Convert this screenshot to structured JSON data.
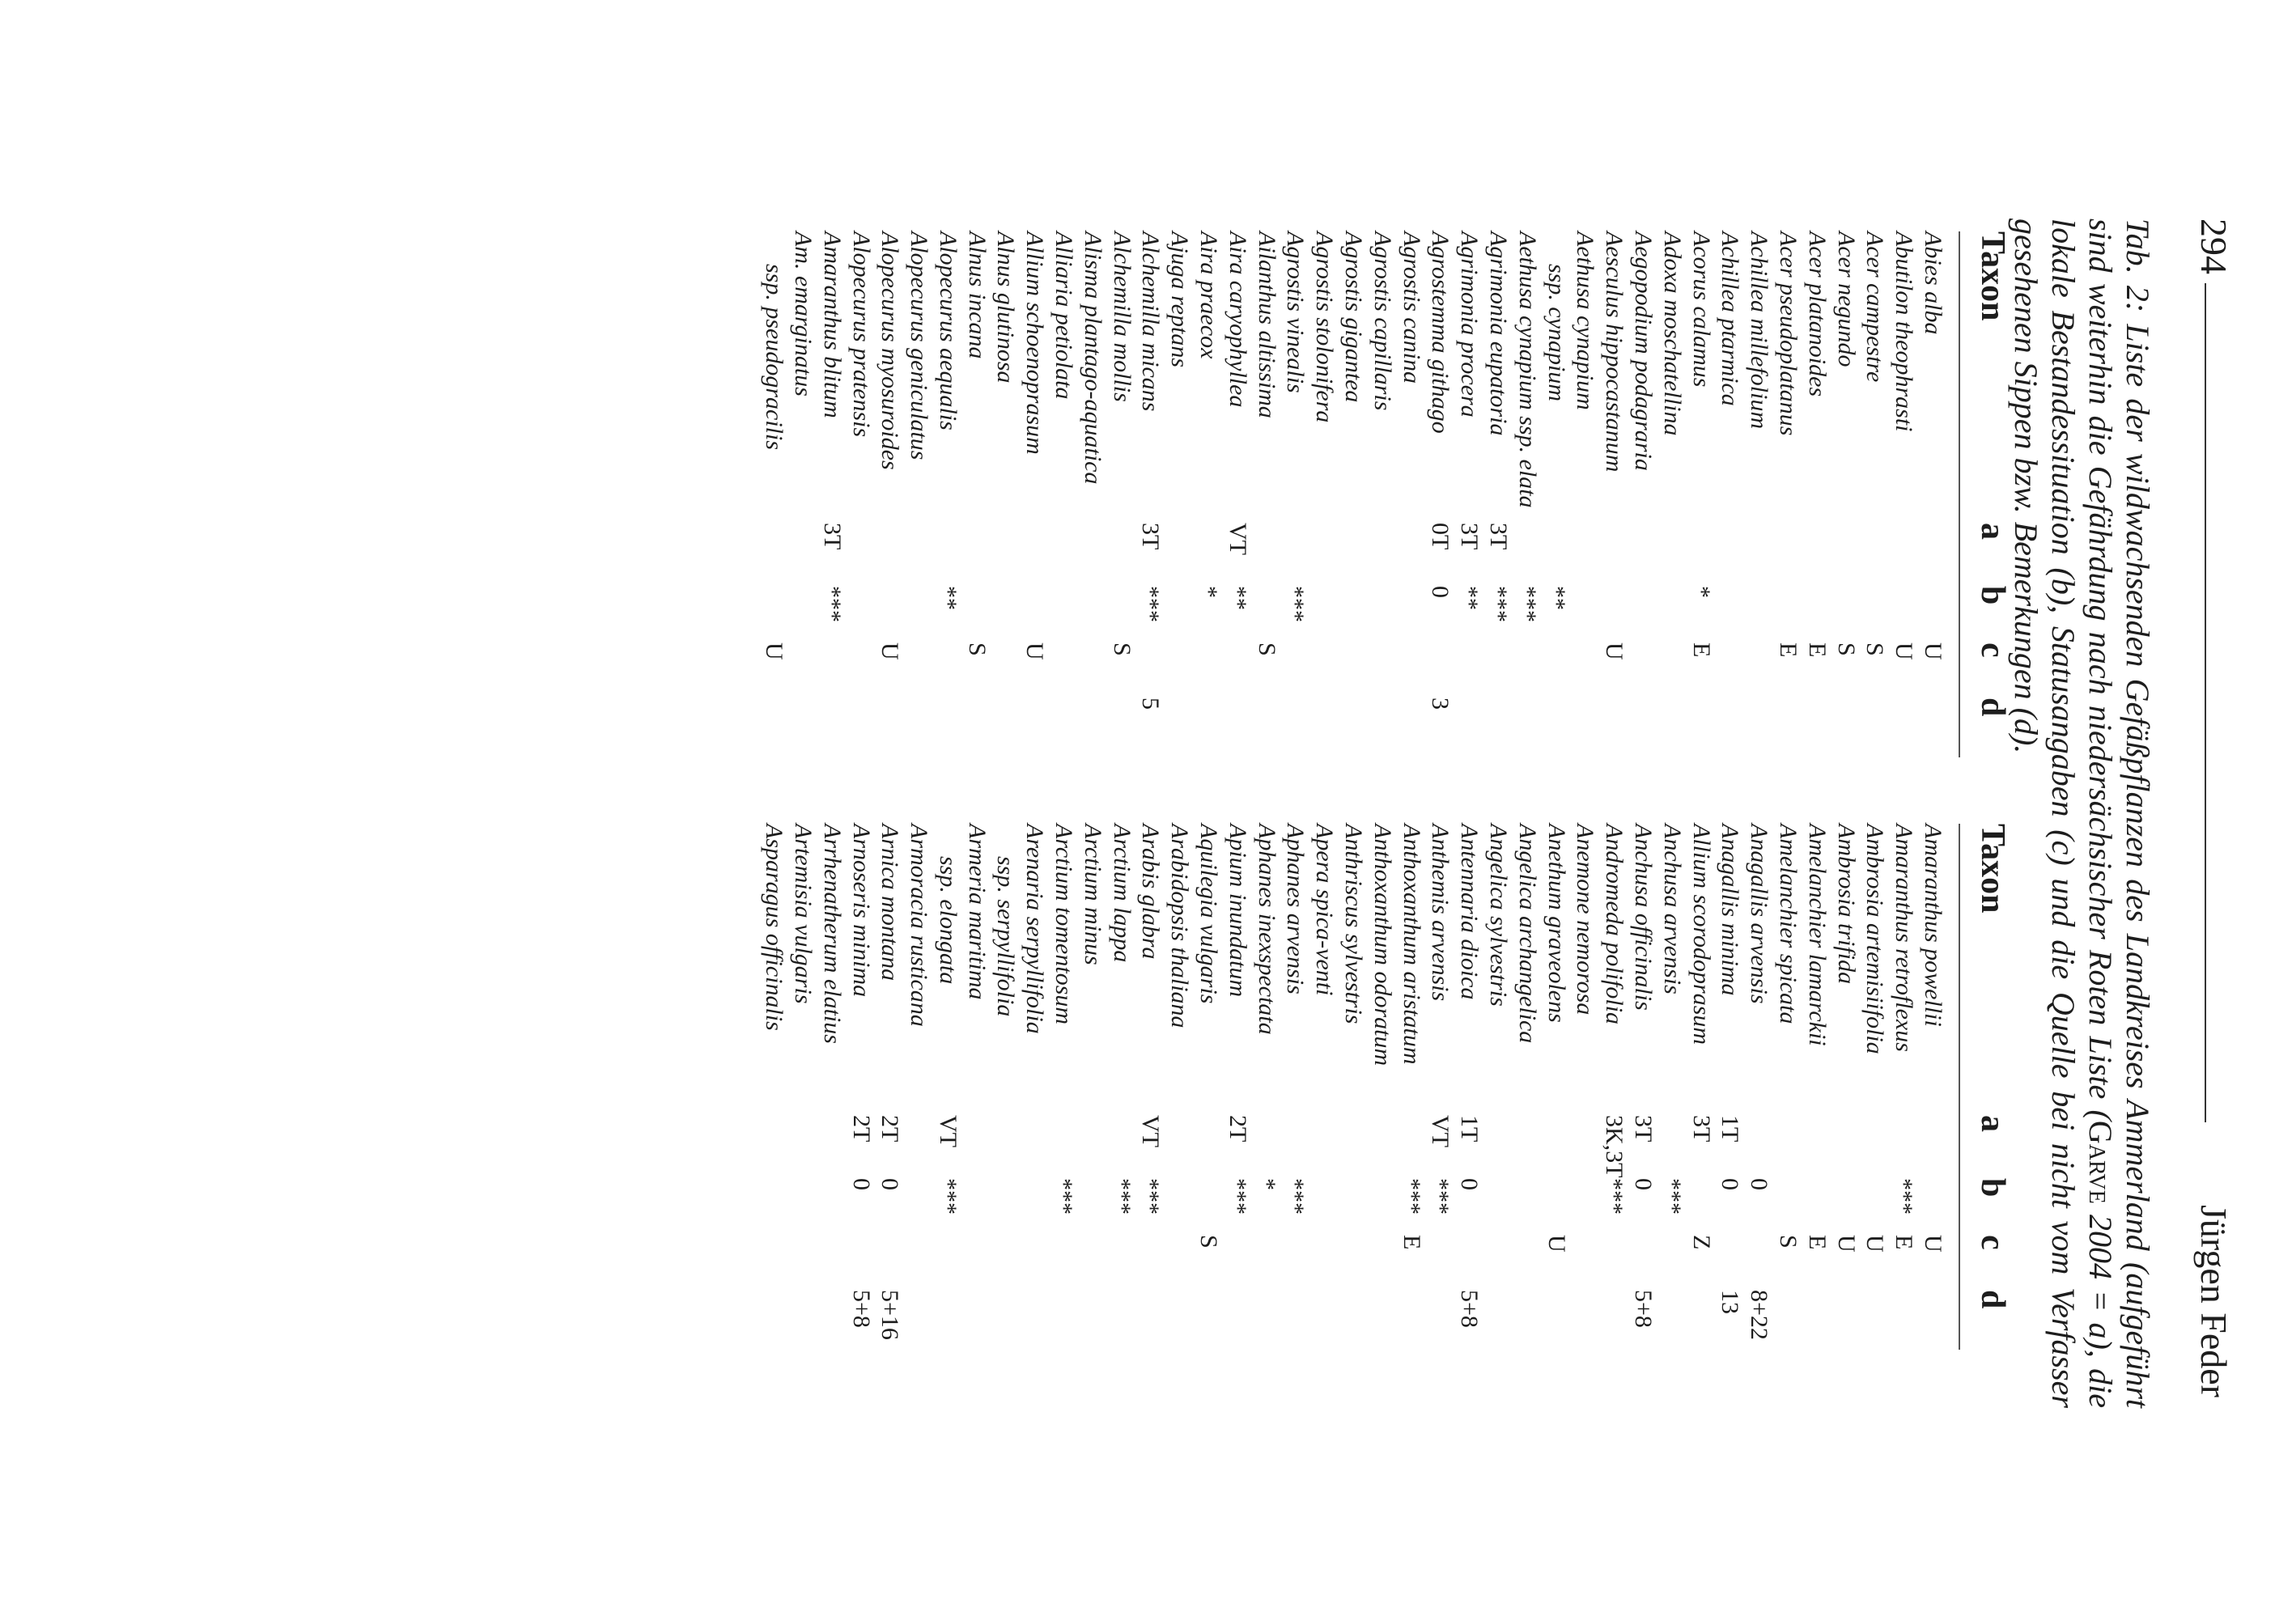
{
  "header": {
    "page_number": "294",
    "author": "Jürgen Feder"
  },
  "caption": {
    "part1": "Tab. 2: Liste der wildwachsenden Gefäßpflanzen des Landkreises Ammerland (aufgeführt sind weiterhin die Gefährdung nach niedersächsischer Roten Liste (",
    "cite": "Garve",
    "part2": " 2004 = a), die lokale Bestandessituation (b), Statusangaben (c) und die Quelle bei nicht vom Verfasser gesehenen Sippen bzw. Bemerkungen (d)."
  },
  "columns": {
    "taxon": "Taxon",
    "a": "a",
    "b": "b",
    "c": "c",
    "d": "d"
  },
  "left_rows": [
    {
      "taxon": "Abies alba",
      "a": "",
      "b": "",
      "c": "U",
      "d": ""
    },
    {
      "taxon": "Abutilon theophrasti",
      "a": "",
      "b": "",
      "c": "U",
      "d": ""
    },
    {
      "taxon": "Acer campestre",
      "a": "",
      "b": "",
      "c": "S",
      "d": ""
    },
    {
      "taxon": "Acer negundo",
      "a": "",
      "b": "",
      "c": "S",
      "d": ""
    },
    {
      "taxon": "Acer platanoides",
      "a": "",
      "b": "",
      "c": "E",
      "d": ""
    },
    {
      "taxon": "Acer pseudoplatanus",
      "a": "",
      "b": "",
      "c": "E",
      "d": ""
    },
    {
      "taxon": "Achillea millefolium",
      "a": "",
      "b": "",
      "c": "",
      "d": ""
    },
    {
      "taxon": "Achillea ptarmica",
      "a": "",
      "b": "",
      "c": "",
      "d": ""
    },
    {
      "taxon": "Acorus calamus",
      "a": "",
      "b": "*",
      "c": "E",
      "d": ""
    },
    {
      "taxon": "Adoxa moschatellina",
      "a": "",
      "b": "",
      "c": "",
      "d": ""
    },
    {
      "taxon": "Aegopodium podagraria",
      "a": "",
      "b": "",
      "c": "",
      "d": ""
    },
    {
      "taxon": "Aesculus hippocastanum",
      "a": "",
      "b": "",
      "c": "U",
      "d": ""
    },
    {
      "taxon": "Aethusa cynapium",
      "a": "",
      "b": "",
      "c": "",
      "d": ""
    },
    {
      "taxon": "ssp. cynapium",
      "sub": true,
      "a": "",
      "b": "**",
      "c": "",
      "d": ""
    },
    {
      "taxon": "Aethusa cynapium ssp. elata",
      "a": "",
      "b": "***",
      "c": "",
      "d": ""
    },
    {
      "taxon": "Agrimonia eupatoria",
      "a": "3T",
      "b": "***",
      "c": "",
      "d": ""
    },
    {
      "taxon": "Agrimonia procera",
      "a": "3T",
      "b": "**",
      "c": "",
      "d": ""
    },
    {
      "taxon": "Agrostemma githago",
      "a": "0T",
      "b": "0",
      "c": "",
      "d": "3"
    },
    {
      "taxon": "Agrostis canina",
      "a": "",
      "b": "",
      "c": "",
      "d": ""
    },
    {
      "taxon": "Agrostis capillaris",
      "a": "",
      "b": "",
      "c": "",
      "d": ""
    },
    {
      "taxon": "Agrostis gigantea",
      "a": "",
      "b": "",
      "c": "",
      "d": ""
    },
    {
      "taxon": "Agrostis stolonifera",
      "a": "",
      "b": "",
      "c": "",
      "d": ""
    },
    {
      "taxon": "Agrostis vinealis",
      "a": "",
      "b": "***",
      "c": "",
      "d": ""
    },
    {
      "taxon": "Ailanthus altissima",
      "a": "",
      "b": "",
      "c": "S",
      "d": ""
    },
    {
      "taxon": "Aira caryophyllea",
      "a": "VT",
      "b": "**",
      "c": "",
      "d": ""
    },
    {
      "taxon": "Aira praecox",
      "a": "",
      "b": "*",
      "c": "",
      "d": ""
    },
    {
      "taxon": "Ajuga reptans",
      "a": "",
      "b": "",
      "c": "",
      "d": ""
    },
    {
      "taxon": "Alchemilla micans",
      "a": "3T",
      "b": "***",
      "c": "",
      "d": "5"
    },
    {
      "taxon": "Alchemilla mollis",
      "a": "",
      "b": "",
      "c": "S",
      "d": ""
    },
    {
      "taxon": "Alisma plantago-aquatica",
      "a": "",
      "b": "",
      "c": "",
      "d": ""
    },
    {
      "taxon": "Alliaria petiolata",
      "a": "",
      "b": "",
      "c": "",
      "d": ""
    },
    {
      "taxon": "Allium schoenoprasum",
      "a": "",
      "b": "",
      "c": "U",
      "d": ""
    },
    {
      "taxon": "Alnus glutinosa",
      "a": "",
      "b": "",
      "c": "",
      "d": ""
    },
    {
      "taxon": "Alnus incana",
      "a": "",
      "b": "",
      "c": "S",
      "d": ""
    },
    {
      "taxon": "Alopecurus aequalis",
      "a": "",
      "b": "**",
      "c": "",
      "d": ""
    },
    {
      "taxon": "Alopecurus geniculatus",
      "a": "",
      "b": "",
      "c": "",
      "d": ""
    },
    {
      "taxon": "Alopecurus myosuroides",
      "a": "",
      "b": "",
      "c": "U",
      "d": ""
    },
    {
      "taxon": "Alopecurus pratensis",
      "a": "",
      "b": "",
      "c": "",
      "d": ""
    },
    {
      "taxon": "Amaranthus blitum",
      "a": "3T",
      "b": "***",
      "c": "",
      "d": ""
    },
    {
      "taxon": "Am. emarginatus",
      "a": "",
      "b": "",
      "c": "",
      "d": ""
    },
    {
      "taxon": "ssp. pseudogracilis",
      "sub": true,
      "a": "",
      "b": "",
      "c": "U",
      "d": ""
    }
  ],
  "right_rows": [
    {
      "taxon": "Amaranthus powellii",
      "a": "",
      "b": "",
      "c": "U",
      "d": ""
    },
    {
      "taxon": "Amaranthus retroflexus",
      "a": "",
      "b": "***",
      "c": "E",
      "d": ""
    },
    {
      "taxon": "Ambrosia artemisiifolia",
      "a": "",
      "b": "",
      "c": "U",
      "d": ""
    },
    {
      "taxon": "Ambrosia trifida",
      "a": "",
      "b": "",
      "c": "U",
      "d": ""
    },
    {
      "taxon": "Amelanchier lamarckii",
      "a": "",
      "b": "",
      "c": "E",
      "d": ""
    },
    {
      "taxon": "Amelanchier spicata",
      "a": "",
      "b": "",
      "c": "S",
      "d": ""
    },
    {
      "taxon": "Anagallis arvensis",
      "a": "",
      "b": "0",
      "c": "",
      "d": "8+22"
    },
    {
      "taxon": "Anagallis minima",
      "a": "1T",
      "b": "0",
      "c": "",
      "d": "13"
    },
    {
      "taxon": "Allium scorodoprasum",
      "a": "3T",
      "b": "",
      "c": "Z",
      "d": ""
    },
    {
      "taxon": "Anchusa arvensis",
      "a": "",
      "b": "***",
      "c": "",
      "d": ""
    },
    {
      "taxon": "Anchusa officinalis",
      "a": "3T",
      "b": "0",
      "c": "",
      "d": "5+8"
    },
    {
      "taxon": "Andromeda polifolia",
      "a": "3K,3T",
      "b": "***",
      "c": "",
      "d": ""
    },
    {
      "taxon": "Anemone nemorosa",
      "a": "",
      "b": "",
      "c": "",
      "d": ""
    },
    {
      "taxon": "Anethum graveolens",
      "a": "",
      "b": "",
      "c": "U",
      "d": ""
    },
    {
      "taxon": "Angelica archangelica",
      "a": "",
      "b": "",
      "c": "",
      "d": ""
    },
    {
      "taxon": "Angelica sylvestris",
      "a": "",
      "b": "",
      "c": "",
      "d": ""
    },
    {
      "taxon": "Antennaria dioica",
      "a": "1T",
      "b": "0",
      "c": "",
      "d": "5+8"
    },
    {
      "taxon": "Anthemis arvensis",
      "a": "VT",
      "b": "***",
      "c": "",
      "d": ""
    },
    {
      "taxon": "Anthoxanthum aristatum",
      "a": "",
      "b": "***",
      "c": "E",
      "d": ""
    },
    {
      "taxon": "Anthoxanthum odoratum",
      "a": "",
      "b": "",
      "c": "",
      "d": ""
    },
    {
      "taxon": "Anthriscus sylvestris",
      "a": "",
      "b": "",
      "c": "",
      "d": ""
    },
    {
      "taxon": "Apera spica-venti",
      "a": "",
      "b": "",
      "c": "",
      "d": ""
    },
    {
      "taxon": "Aphanes arvensis",
      "a": "",
      "b": "***",
      "c": "",
      "d": ""
    },
    {
      "taxon": "Aphanes inexspectata",
      "a": "",
      "b": "*",
      "c": "",
      "d": ""
    },
    {
      "taxon": "Apium inundatum",
      "a": "2T",
      "b": "***",
      "c": "",
      "d": ""
    },
    {
      "taxon": "Aquilegia vulgaris",
      "a": "",
      "b": "",
      "c": "S",
      "d": ""
    },
    {
      "taxon": "Arabidopsis thaliana",
      "a": "",
      "b": "",
      "c": "",
      "d": ""
    },
    {
      "taxon": "Arabis glabra",
      "a": "VT",
      "b": "***",
      "c": "",
      "d": ""
    },
    {
      "taxon": "Arctium lappa",
      "a": "",
      "b": "***",
      "c": "",
      "d": ""
    },
    {
      "taxon": "Arctium minus",
      "a": "",
      "b": "",
      "c": "",
      "d": ""
    },
    {
      "taxon": "Arctium tomentosum",
      "a": "",
      "b": "***",
      "c": "",
      "d": ""
    },
    {
      "taxon": "Arenaria serpyllifolia",
      "a": "",
      "b": "",
      "c": "",
      "d": ""
    },
    {
      "taxon": "ssp. serpyllifolia",
      "sub": true,
      "a": "",
      "b": "",
      "c": "",
      "d": ""
    },
    {
      "taxon": "Armeria maritima",
      "a": "",
      "b": "",
      "c": "",
      "d": ""
    },
    {
      "taxon": "ssp. elongata",
      "sub": true,
      "a": "VT",
      "b": "***",
      "c": "",
      "d": ""
    },
    {
      "taxon": "Armoracia rusticana",
      "a": "",
      "b": "",
      "c": "",
      "d": ""
    },
    {
      "taxon": "Arnica montana",
      "a": "2T",
      "b": "0",
      "c": "",
      "d": "5+16"
    },
    {
      "taxon": "Arnoseris minima",
      "a": "2T",
      "b": "0",
      "c": "",
      "d": "5+8"
    },
    {
      "taxon": "Arrhenatherum elatius",
      "a": "",
      "b": "",
      "c": "",
      "d": ""
    },
    {
      "taxon": "Artemisia vulgaris",
      "a": "",
      "b": "",
      "c": "",
      "d": ""
    },
    {
      "taxon": "Asparagus officinalis",
      "a": "",
      "b": "",
      "c": "",
      "d": ""
    }
  ]
}
